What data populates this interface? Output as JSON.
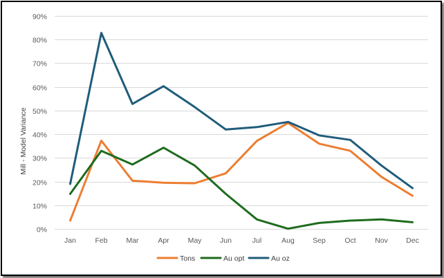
{
  "chart_data": {
    "type": "line",
    "title": "",
    "xlabel": "",
    "ylabel": "Mill - Model Variance",
    "categories": [
      "Jan",
      "Feb",
      "Mar",
      "Apr",
      "May",
      "Jun",
      "Jul",
      "Aug",
      "Sep",
      "Oct",
      "Nov",
      "Dec"
    ],
    "ylim": [
      0,
      90
    ],
    "y_ticks": [
      "0%",
      "10%",
      "20%",
      "30%",
      "40%",
      "50%",
      "60%",
      "70%",
      "80%",
      "90%"
    ],
    "grid": true,
    "legend_position": "bottom",
    "series": [
      {
        "name": "Tons",
        "color": "#ED7D31",
        "values": [
          3.5,
          37.3,
          20.4,
          19.5,
          19.3,
          23.5,
          37.2,
          44.8,
          36.0,
          33.0,
          22.0,
          14.0
        ]
      },
      {
        "name": "Au opt",
        "color": "#1E6B1E",
        "values": [
          14.8,
          33.0,
          27.2,
          34.3,
          26.8,
          14.8,
          4.0,
          0.1,
          2.5,
          3.5,
          4.0,
          2.8
        ]
      },
      {
        "name": "Au oz",
        "color": "#1F5C7A",
        "values": [
          19.0,
          82.8,
          52.8,
          60.3,
          51.5,
          42.0,
          43.0,
          45.2,
          39.5,
          37.6,
          26.8,
          17.2
        ]
      }
    ]
  }
}
